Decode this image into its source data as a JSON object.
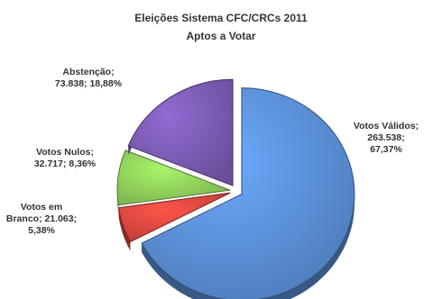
{
  "chart_data": {
    "type": "pie",
    "title_lines": [
      "Eleições Sistema CFC/CRCs 2011",
      "Aptos a Votar"
    ],
    "exploded": true,
    "start_angle_deg": 0,
    "slices": [
      {
        "name": "Votos Válidos",
        "value": 263538,
        "percent": 67.37,
        "color": "#5b8fd6",
        "label_lines": [
          "Votos Válidos;",
          "263.538;",
          "67,37%"
        ]
      },
      {
        "name": "Votos em Branco",
        "value": 21063,
        "percent": 5.38,
        "color": "#d9473f",
        "label_lines": [
          "Votos em",
          "Branco; 21.063;",
          "5,38%"
        ]
      },
      {
        "name": "Votos Nulos",
        "value": 32717,
        "percent": 8.36,
        "color": "#8fcf5a",
        "label_lines": [
          "Votos Nulos;",
          "32.717; 8,36%"
        ]
      },
      {
        "name": "Abstenção",
        "value": 73838,
        "percent": 18.88,
        "color": "#7b5bb3",
        "label_lines": [
          "Abstenção;",
          "73.838; 18,88%"
        ]
      }
    ]
  }
}
